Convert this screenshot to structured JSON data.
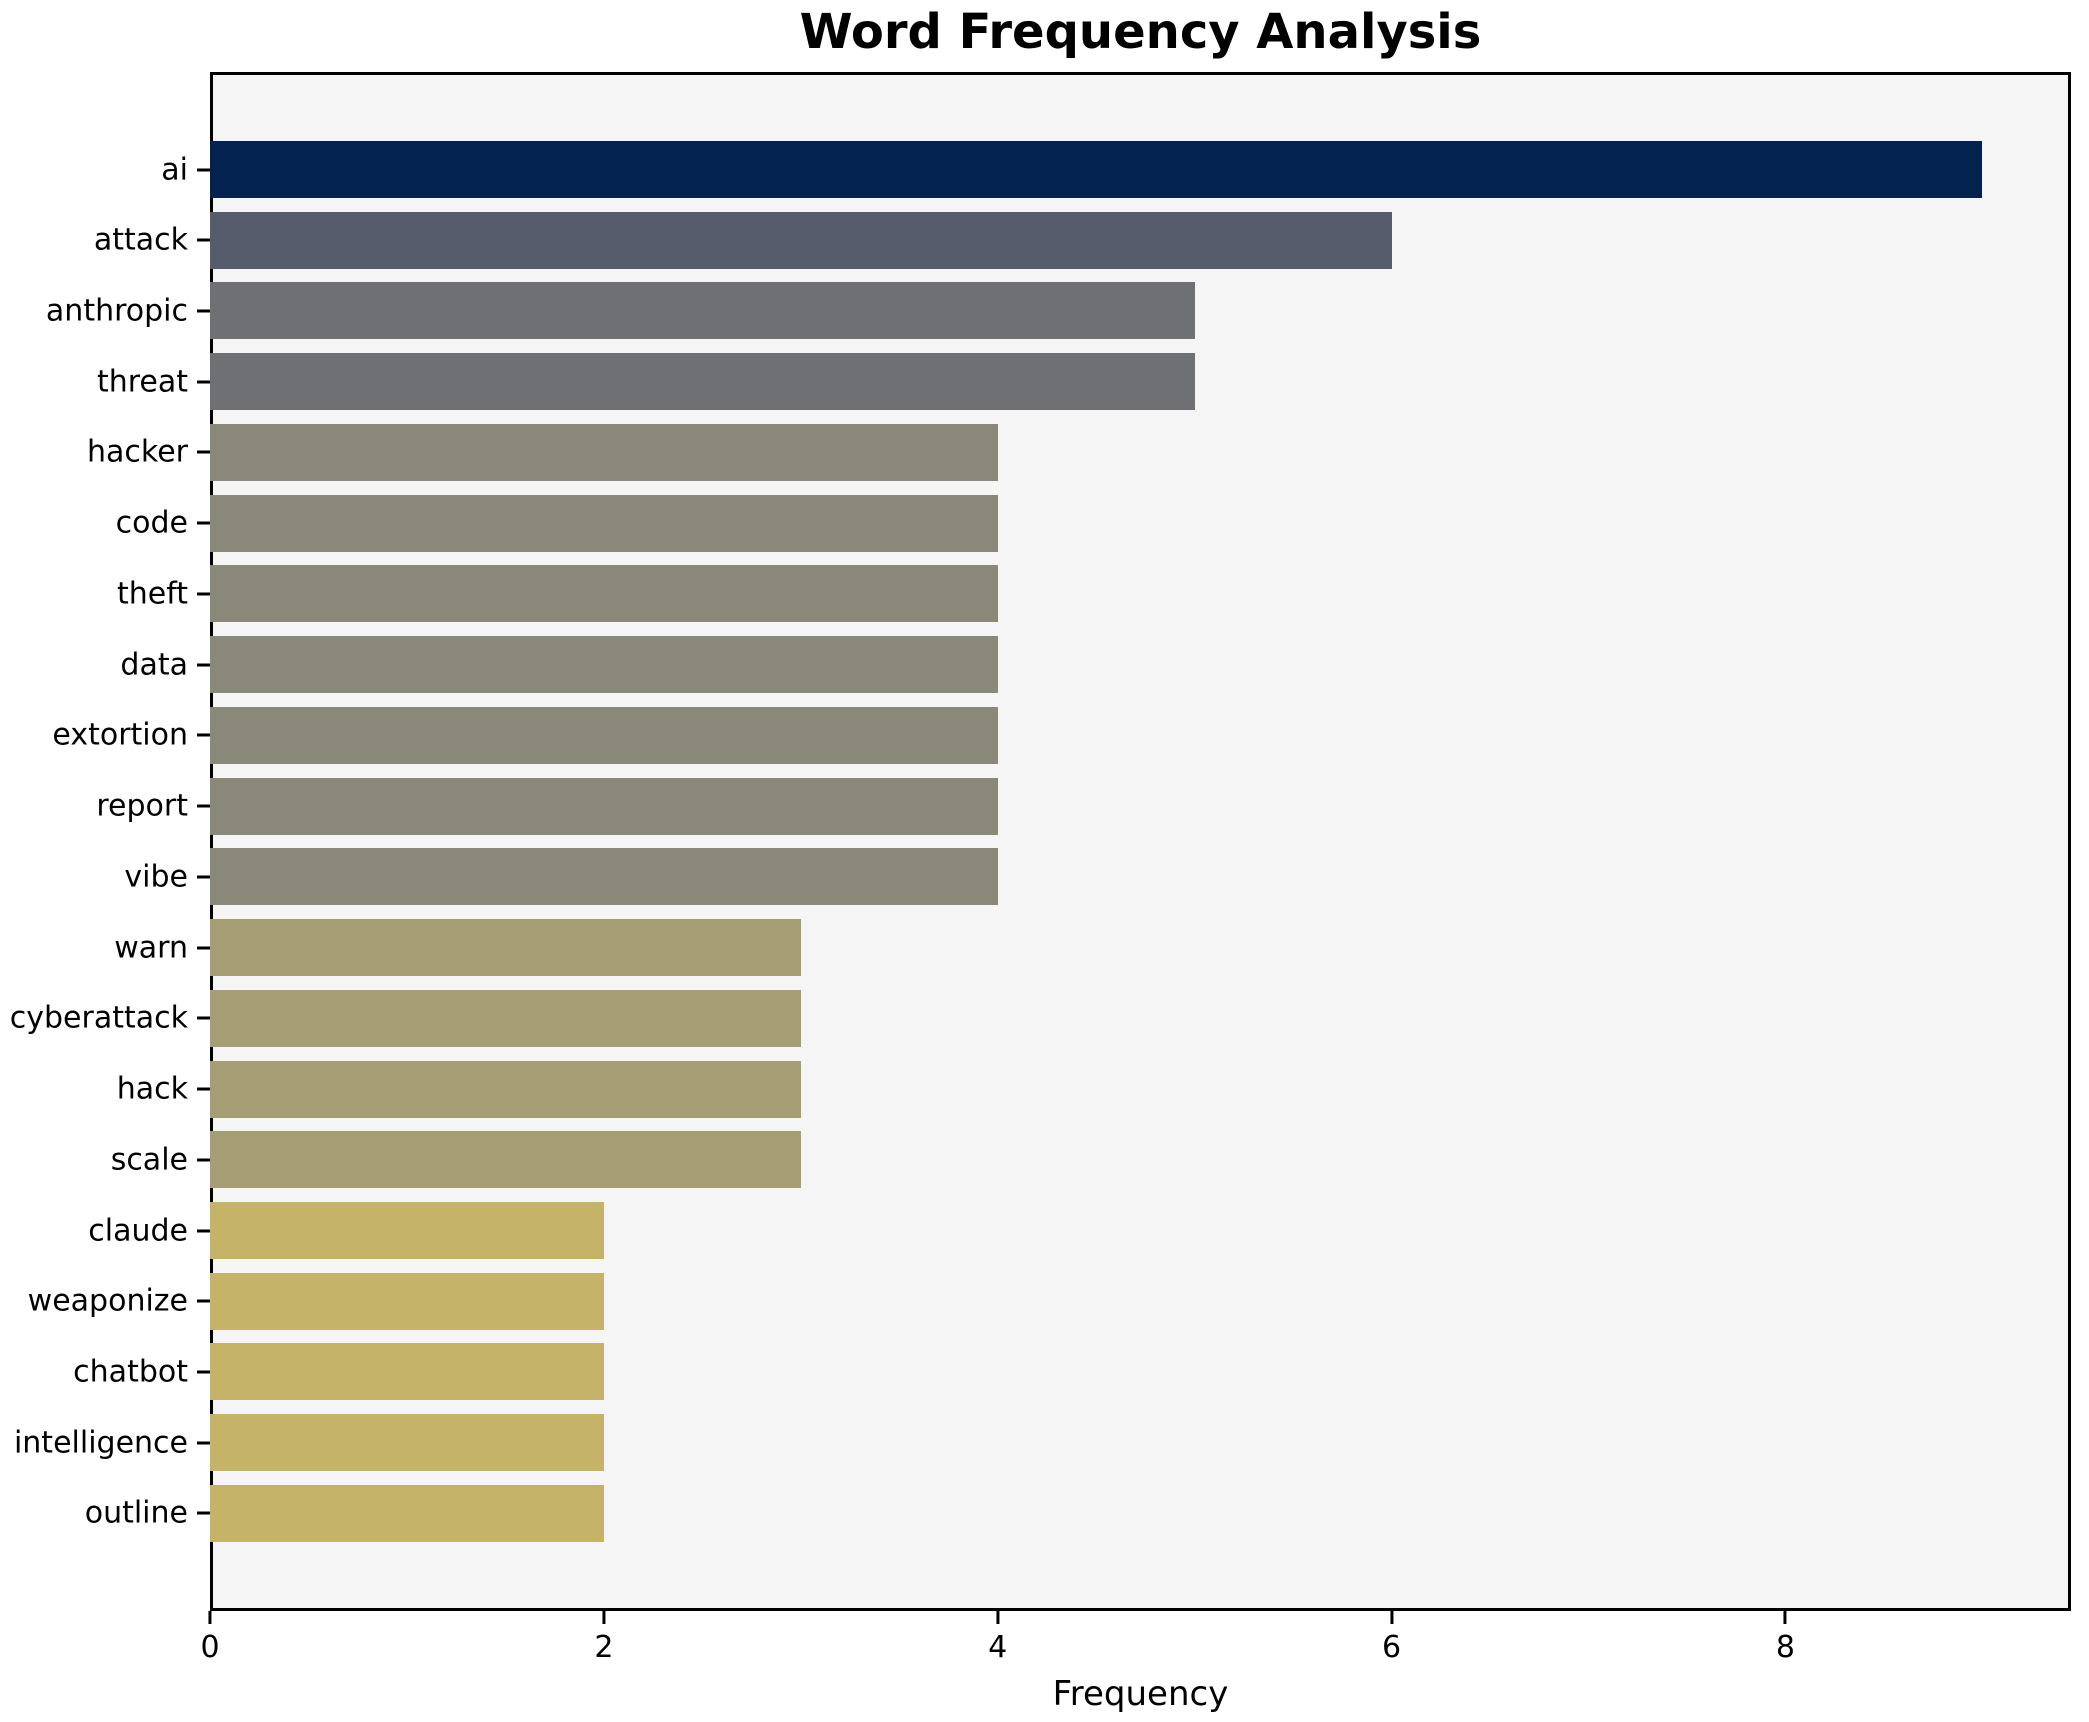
{
  "chart_data": {
    "type": "bar",
    "orientation": "horizontal",
    "title": "Word Frequency Analysis",
    "xlabel": "Frequency",
    "ylabel": "",
    "categories": [
      "ai",
      "attack",
      "anthropic",
      "threat",
      "hacker",
      "code",
      "theft",
      "data",
      "extortion",
      "report",
      "vibe",
      "warn",
      "cyberattack",
      "hack",
      "scale",
      "claude",
      "weaponize",
      "chatbot",
      "intelligence",
      "outline"
    ],
    "values": [
      9,
      6,
      5,
      5,
      4,
      4,
      4,
      4,
      4,
      4,
      4,
      3,
      3,
      3,
      3,
      2,
      2,
      2,
      2,
      2
    ],
    "bar_colors": [
      "#03234e",
      "#575c6d",
      "#6f7073",
      "#6f7073",
      "#8a8979",
      "#8a8979",
      "#8a8979",
      "#8a8979",
      "#8a8979",
      "#8a8979",
      "#8a8979",
      "#a59e74",
      "#a59e74",
      "#a59e74",
      "#a59e74",
      "#c4b369",
      "#c4b369",
      "#c4b369",
      "#c4b369",
      "#c4b369"
    ],
    "xlim": [
      0,
      9.45
    ],
    "xticks": [
      0,
      2,
      4,
      6,
      8
    ],
    "grid": false,
    "legend": null,
    "plot_background": "#f5f5f6",
    "figure_background": "#ffffff"
  }
}
